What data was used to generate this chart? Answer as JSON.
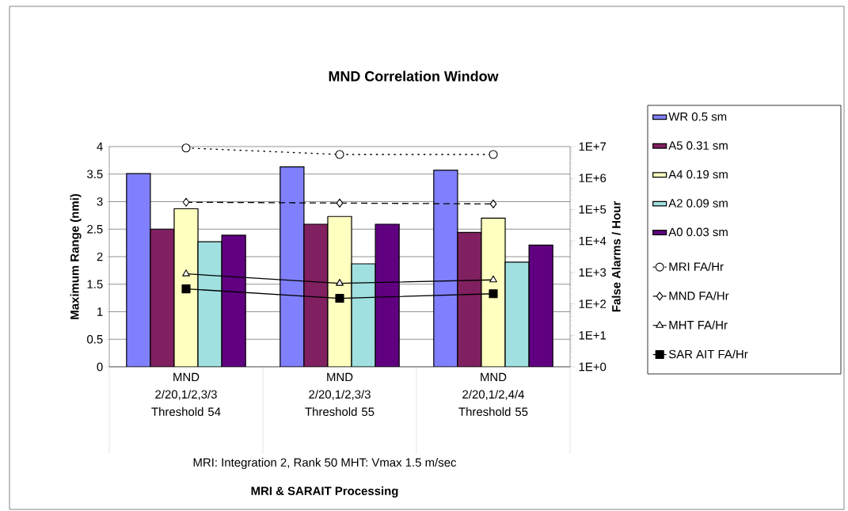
{
  "chart_data": {
    "type": "bar",
    "title": "MND Correlation Window",
    "ylabel": "Maximum Range (nmi)",
    "y2label": "False Alarms / Hour",
    "annotations": [
      "MRI: Integration 2, Rank 50   MHT: Vmax 1.5 m/sec",
      "MRI & SARAIT Processing"
    ],
    "categories": [
      "MND 2/20,1/2,3/3 Threshold 54",
      "MND 2/20,1/2,3/3 Threshold 55",
      "MND 2/20,1/2,4/4 Threshold 55"
    ],
    "ylim": [
      0,
      4
    ],
    "yticks": [
      0,
      0.5,
      1,
      1.5,
      2,
      2.5,
      3,
      3.5,
      4
    ],
    "y2lim": [
      1,
      10000000
    ],
    "y2ticks": [
      {
        "value": 1,
        "label": "1E+0"
      },
      {
        "value": 10,
        "label": "1E+1"
      },
      {
        "value": 100,
        "label": "1E+2"
      },
      {
        "value": 1000,
        "label": "1E+3"
      },
      {
        "value": 10000,
        "label": "1E+4"
      },
      {
        "value": 100000,
        "label": "1E+5"
      },
      {
        "value": 1000000,
        "label": "1E+6"
      },
      {
        "value": 10000000,
        "label": "1E+7"
      }
    ],
    "log": "y2",
    "grid": "y",
    "legend": "right",
    "series": [
      {
        "name": "WR 0.5 sm",
        "color": "#8080ff",
        "values": [
          3.51,
          3.63,
          3.57
        ]
      },
      {
        "name": "A5 0.31 sm",
        "color": "#802060",
        "values": [
          2.5,
          2.59,
          2.44
        ]
      },
      {
        "name": "A4 0.19 sm",
        "color": "#ffffc0",
        "values": [
          2.87,
          2.73,
          2.7
        ]
      },
      {
        "name": "A2 0.09 sm",
        "color": "#a0e0e0",
        "values": [
          2.27,
          1.87,
          1.9
        ]
      },
      {
        "name": "A0 0.03 sm",
        "color": "#600080",
        "values": [
          2.39,
          2.59,
          2.21
        ]
      },
      {
        "name": "MRI FA/Hr",
        "type": "line",
        "axis": "y2",
        "color": "#000000",
        "marker": "circle",
        "line_style": "dotted",
        "values": [
          9000000,
          5600000,
          5600000
        ]
      },
      {
        "name": "MND FA/Hr",
        "type": "line",
        "axis": "y2",
        "color": "#000000",
        "marker": "diamond",
        "line_style": "dashed",
        "values": [
          170000,
          160000,
          150000
        ]
      },
      {
        "name": "MHT FA/Hr",
        "type": "line",
        "axis": "y2",
        "color": "#000000",
        "marker": "triangle",
        "line_style": "solid",
        "values": [
          900,
          450,
          580
        ]
      },
      {
        "name": "SAR AIT FA/Hr",
        "type": "line",
        "axis": "y2",
        "color": "#000000",
        "marker": "square",
        "line_style": "solid",
        "values": [
          300,
          150,
          210
        ]
      }
    ]
  }
}
